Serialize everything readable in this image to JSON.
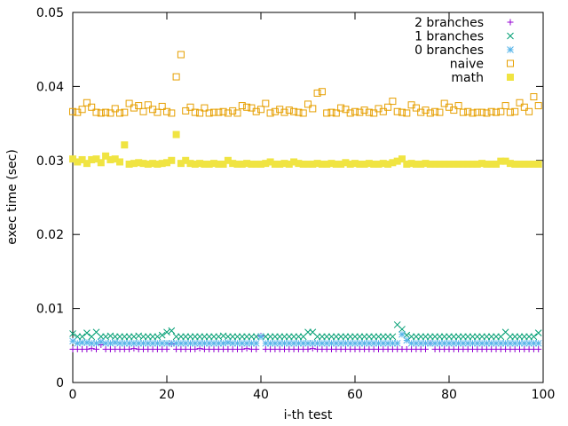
{
  "chart_data": {
    "type": "scatter",
    "title": "",
    "xlabel": "i-th test",
    "ylabel": "exec time (sec)",
    "xlim": [
      0,
      100
    ],
    "ylim": [
      0,
      0.05
    ],
    "xticks": [
      "0",
      "20",
      "40",
      "60",
      "80",
      "100"
    ],
    "xtick_values": [
      0,
      20,
      40,
      60,
      80,
      100
    ],
    "yticks": [
      "0",
      "0.01",
      "0.02",
      "0.03",
      "0.04",
      "0.05"
    ],
    "ytick_values": [
      0,
      0.01,
      0.02,
      0.03,
      0.04,
      0.05
    ],
    "legend_position": "top-right",
    "x": [
      0,
      1,
      2,
      3,
      4,
      5,
      6,
      7,
      8,
      9,
      10,
      11,
      12,
      13,
      14,
      15,
      16,
      17,
      18,
      19,
      20,
      21,
      22,
      23,
      24,
      25,
      26,
      27,
      28,
      29,
      30,
      31,
      32,
      33,
      34,
      35,
      36,
      37,
      38,
      39,
      40,
      41,
      42,
      43,
      44,
      45,
      46,
      47,
      48,
      49,
      50,
      51,
      52,
      53,
      54,
      55,
      56,
      57,
      58,
      59,
      60,
      61,
      62,
      63,
      64,
      65,
      66,
      67,
      68,
      69,
      70,
      71,
      72,
      73,
      74,
      75,
      76,
      77,
      78,
      79,
      80,
      81,
      82,
      83,
      84,
      85,
      86,
      87,
      88,
      89,
      90,
      91,
      92,
      93,
      94,
      95,
      96,
      97,
      98,
      99
    ],
    "series": [
      {
        "name": "2 branches",
        "marker": "plus",
        "color": "#9400d3",
        "values": [
          0.0045,
          0.0045,
          0.0045,
          0.0045,
          0.0046,
          0.0045,
          0.0051,
          0.0045,
          0.0045,
          0.0045,
          0.0045,
          0.0045,
          0.0045,
          0.0046,
          0.0045,
          0.0045,
          0.0045,
          0.0045,
          0.0045,
          0.0045,
          0.0045,
          0.0052,
          0.0045,
          0.0045,
          0.0045,
          0.0045,
          0.0045,
          0.0046,
          0.0045,
          0.0045,
          0.0045,
          0.0045,
          0.0045,
          0.0045,
          0.0045,
          0.0045,
          0.0045,
          0.0046,
          0.0045,
          0.0045,
          0.0063,
          0.0045,
          0.0045,
          0.0045,
          0.0045,
          0.0045,
          0.0045,
          0.0045,
          0.0045,
          0.0045,
          0.0045,
          0.0046,
          0.0045,
          0.0045,
          0.0045,
          0.0045,
          0.0045,
          0.0045,
          0.0045,
          0.0045,
          0.0045,
          0.0045,
          0.0045,
          0.0045,
          0.0045,
          0.0045,
          0.0045,
          0.0045,
          0.0045,
          0.0045,
          0.0045,
          0.0045,
          0.0045,
          0.0045,
          0.0045,
          0.0045,
          0.0053,
          0.0045,
          0.0045,
          0.0045,
          0.0045,
          0.0045,
          0.0045,
          0.0045,
          0.0045,
          0.0045,
          0.0045,
          0.0045,
          0.0045,
          0.0045,
          0.0045,
          0.0045,
          0.0045,
          0.0045,
          0.0045,
          0.0045,
          0.0045,
          0.0045,
          0.0045,
          0.0045
        ]
      },
      {
        "name": "1 branches",
        "marker": "cross",
        "color": "#009e73",
        "values": [
          0.0066,
          0.0062,
          0.0062,
          0.0067,
          0.0062,
          0.0068,
          0.0062,
          0.0062,
          0.0063,
          0.0062,
          0.0062,
          0.0062,
          0.0062,
          0.0062,
          0.0063,
          0.0062,
          0.0062,
          0.0062,
          0.0062,
          0.0064,
          0.0068,
          0.007,
          0.0062,
          0.0062,
          0.0062,
          0.0062,
          0.0062,
          0.0062,
          0.0062,
          0.0062,
          0.0062,
          0.0062,
          0.0063,
          0.0062,
          0.0062,
          0.0062,
          0.0062,
          0.0062,
          0.0062,
          0.0062,
          0.0062,
          0.0062,
          0.0062,
          0.0062,
          0.0062,
          0.0062,
          0.0062,
          0.0062,
          0.0062,
          0.0062,
          0.0068,
          0.0068,
          0.0062,
          0.0062,
          0.0062,
          0.0062,
          0.0062,
          0.0062,
          0.0062,
          0.0062,
          0.0062,
          0.0062,
          0.0062,
          0.0062,
          0.0062,
          0.0062,
          0.0062,
          0.0062,
          0.0062,
          0.0078,
          0.0072,
          0.0064,
          0.0062,
          0.0062,
          0.0062,
          0.0062,
          0.0062,
          0.0062,
          0.0062,
          0.0062,
          0.0062,
          0.0062,
          0.0062,
          0.0062,
          0.0062,
          0.0062,
          0.0062,
          0.0062,
          0.0062,
          0.0062,
          0.0062,
          0.0062,
          0.0068,
          0.0062,
          0.0062,
          0.0062,
          0.0062,
          0.0062,
          0.0062,
          0.0067
        ]
      },
      {
        "name": "0 branches",
        "marker": "star",
        "color": "#56b4e9",
        "values": [
          0.0056,
          0.0053,
          0.0054,
          0.0054,
          0.0053,
          0.0053,
          0.0055,
          0.0053,
          0.0053,
          0.0054,
          0.0053,
          0.0053,
          0.0053,
          0.0053,
          0.0053,
          0.0053,
          0.0053,
          0.0053,
          0.0053,
          0.0053,
          0.0053,
          0.0053,
          0.0053,
          0.0053,
          0.0053,
          0.0053,
          0.0053,
          0.0053,
          0.0053,
          0.0053,
          0.0053,
          0.0053,
          0.0053,
          0.0054,
          0.0053,
          0.0053,
          0.0053,
          0.0053,
          0.0053,
          0.0053,
          0.0062,
          0.0053,
          0.0053,
          0.0053,
          0.0053,
          0.0053,
          0.0053,
          0.0053,
          0.0053,
          0.0053,
          0.0053,
          0.0053,
          0.0053,
          0.0053,
          0.0053,
          0.0053,
          0.0053,
          0.0053,
          0.0053,
          0.0053,
          0.0053,
          0.0053,
          0.0053,
          0.0053,
          0.0053,
          0.0053,
          0.0053,
          0.0053,
          0.0053,
          0.0053,
          0.0065,
          0.0057,
          0.0053,
          0.0053,
          0.0053,
          0.0053,
          0.0053,
          0.0053,
          0.0053,
          0.0053,
          0.0053,
          0.0053,
          0.0053,
          0.0053,
          0.0053,
          0.0053,
          0.0053,
          0.0053,
          0.0053,
          0.0053,
          0.0053,
          0.0053,
          0.0053,
          0.0053,
          0.0053,
          0.0053,
          0.0053,
          0.0053,
          0.0053,
          0.0053
        ]
      },
      {
        "name": "naive",
        "marker": "square-open",
        "color": "#e69f00",
        "values": [
          0.0366,
          0.0365,
          0.0369,
          0.0378,
          0.0372,
          0.0365,
          0.0364,
          0.0365,
          0.0364,
          0.037,
          0.0364,
          0.0365,
          0.0377,
          0.0371,
          0.0374,
          0.0366,
          0.0375,
          0.0369,
          0.0365,
          0.0373,
          0.0366,
          0.0364,
          0.0413,
          0.0443,
          0.0367,
          0.0372,
          0.0365,
          0.0364,
          0.0371,
          0.0364,
          0.0365,
          0.0365,
          0.0366,
          0.0364,
          0.0367,
          0.0364,
          0.0374,
          0.0372,
          0.0371,
          0.0366,
          0.0369,
          0.0377,
          0.0364,
          0.0366,
          0.0369,
          0.0365,
          0.0368,
          0.0366,
          0.0365,
          0.0364,
          0.0376,
          0.037,
          0.0391,
          0.0393,
          0.0364,
          0.0365,
          0.0364,
          0.0371,
          0.0369,
          0.0364,
          0.0366,
          0.0365,
          0.0368,
          0.0365,
          0.0364,
          0.037,
          0.0366,
          0.0372,
          0.038,
          0.0366,
          0.0365,
          0.0364,
          0.0375,
          0.0371,
          0.0365,
          0.0368,
          0.0364,
          0.0366,
          0.0365,
          0.0377,
          0.0372,
          0.0368,
          0.0374,
          0.0365,
          0.0366,
          0.0364,
          0.0365,
          0.0365,
          0.0364,
          0.0366,
          0.0365,
          0.0366,
          0.0374,
          0.0365,
          0.0366,
          0.0378,
          0.0372,
          0.0366,
          0.0386,
          0.0374
        ]
      },
      {
        "name": "math",
        "marker": "square-filled",
        "color": "#f0e442",
        "values": [
          0.0302,
          0.0298,
          0.0301,
          0.0296,
          0.0301,
          0.0302,
          0.0297,
          0.0306,
          0.0301,
          0.0302,
          0.0298,
          0.0321,
          0.0295,
          0.0296,
          0.0297,
          0.0296,
          0.0295,
          0.0296,
          0.0295,
          0.0296,
          0.0297,
          0.03,
          0.0335,
          0.0296,
          0.03,
          0.0296,
          0.0295,
          0.0296,
          0.0295,
          0.0295,
          0.0296,
          0.0295,
          0.0295,
          0.03,
          0.0296,
          0.0295,
          0.0295,
          0.0296,
          0.0295,
          0.0295,
          0.0295,
          0.0296,
          0.0298,
          0.0295,
          0.0295,
          0.0296,
          0.0295,
          0.0298,
          0.0296,
          0.0295,
          0.0295,
          0.0295,
          0.0296,
          0.0295,
          0.0295,
          0.0296,
          0.0295,
          0.0295,
          0.0297,
          0.0295,
          0.0296,
          0.0295,
          0.0295,
          0.0296,
          0.0295,
          0.0295,
          0.0296,
          0.0295,
          0.0297,
          0.0299,
          0.0302,
          0.0295,
          0.0296,
          0.0295,
          0.0295,
          0.0296,
          0.0295,
          0.0295,
          0.0295,
          0.0295,
          0.0295,
          0.0295,
          0.0295,
          0.0295,
          0.0295,
          0.0295,
          0.0295,
          0.0296,
          0.0295,
          0.0295,
          0.0295,
          0.0299,
          0.0299,
          0.0296,
          0.0295,
          0.0295,
          0.0295,
          0.0295,
          0.0295,
          0.0295
        ]
      }
    ]
  }
}
